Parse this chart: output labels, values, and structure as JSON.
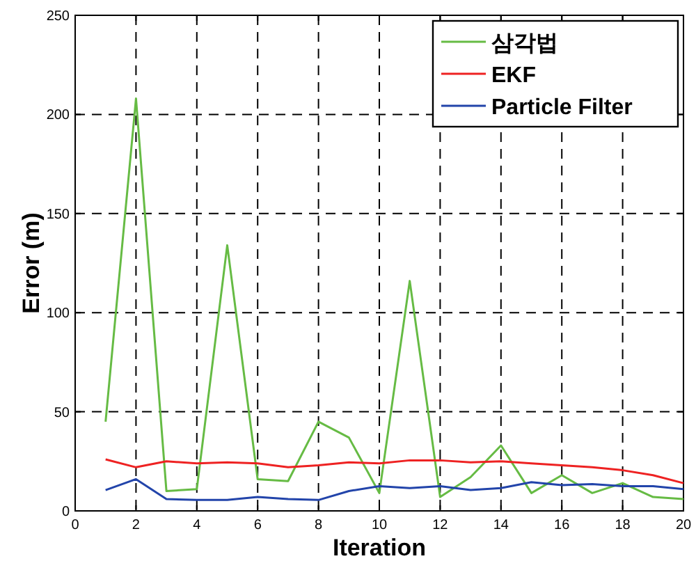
{
  "chart_data": {
    "type": "line",
    "xlabel": "Iteration",
    "ylabel": "Error (m)",
    "x": [
      1,
      2,
      3,
      4,
      5,
      6,
      7,
      8,
      9,
      10,
      11,
      12,
      13,
      14,
      15,
      16,
      17,
      18,
      19,
      20
    ],
    "series": [
      {
        "name": "삼각법",
        "color": "#66bb44",
        "values": [
          45,
          208,
          10,
          11,
          134,
          16,
          15,
          45,
          37,
          9,
          116,
          7,
          17,
          33,
          9,
          18,
          9,
          14,
          7,
          6
        ]
      },
      {
        "name": "EKF",
        "color": "#ee2222",
        "values": [
          26,
          22,
          25,
          24,
          24.5,
          24,
          22,
          23,
          24.5,
          24,
          25.5,
          25.5,
          24.5,
          25,
          24,
          23,
          22,
          20.5,
          18,
          14
        ]
      },
      {
        "name": "Particle Filter",
        "color": "#2244aa",
        "values": [
          10.5,
          16,
          6,
          5.5,
          5.5,
          7,
          6,
          5.5,
          10,
          12.5,
          11.5,
          12.5,
          10.5,
          11.5,
          14.5,
          13,
          13.5,
          12.5,
          12.5,
          11
        ]
      }
    ],
    "xlim": [
      0,
      20
    ],
    "ylim": [
      0,
      250
    ],
    "xticks": [
      0,
      2,
      4,
      6,
      8,
      10,
      12,
      14,
      16,
      18,
      20
    ],
    "yticks": [
      0,
      50,
      100,
      150,
      200,
      250
    ],
    "grid": true,
    "legend": "top right",
    "marker": "none",
    "line_style": "solid"
  }
}
